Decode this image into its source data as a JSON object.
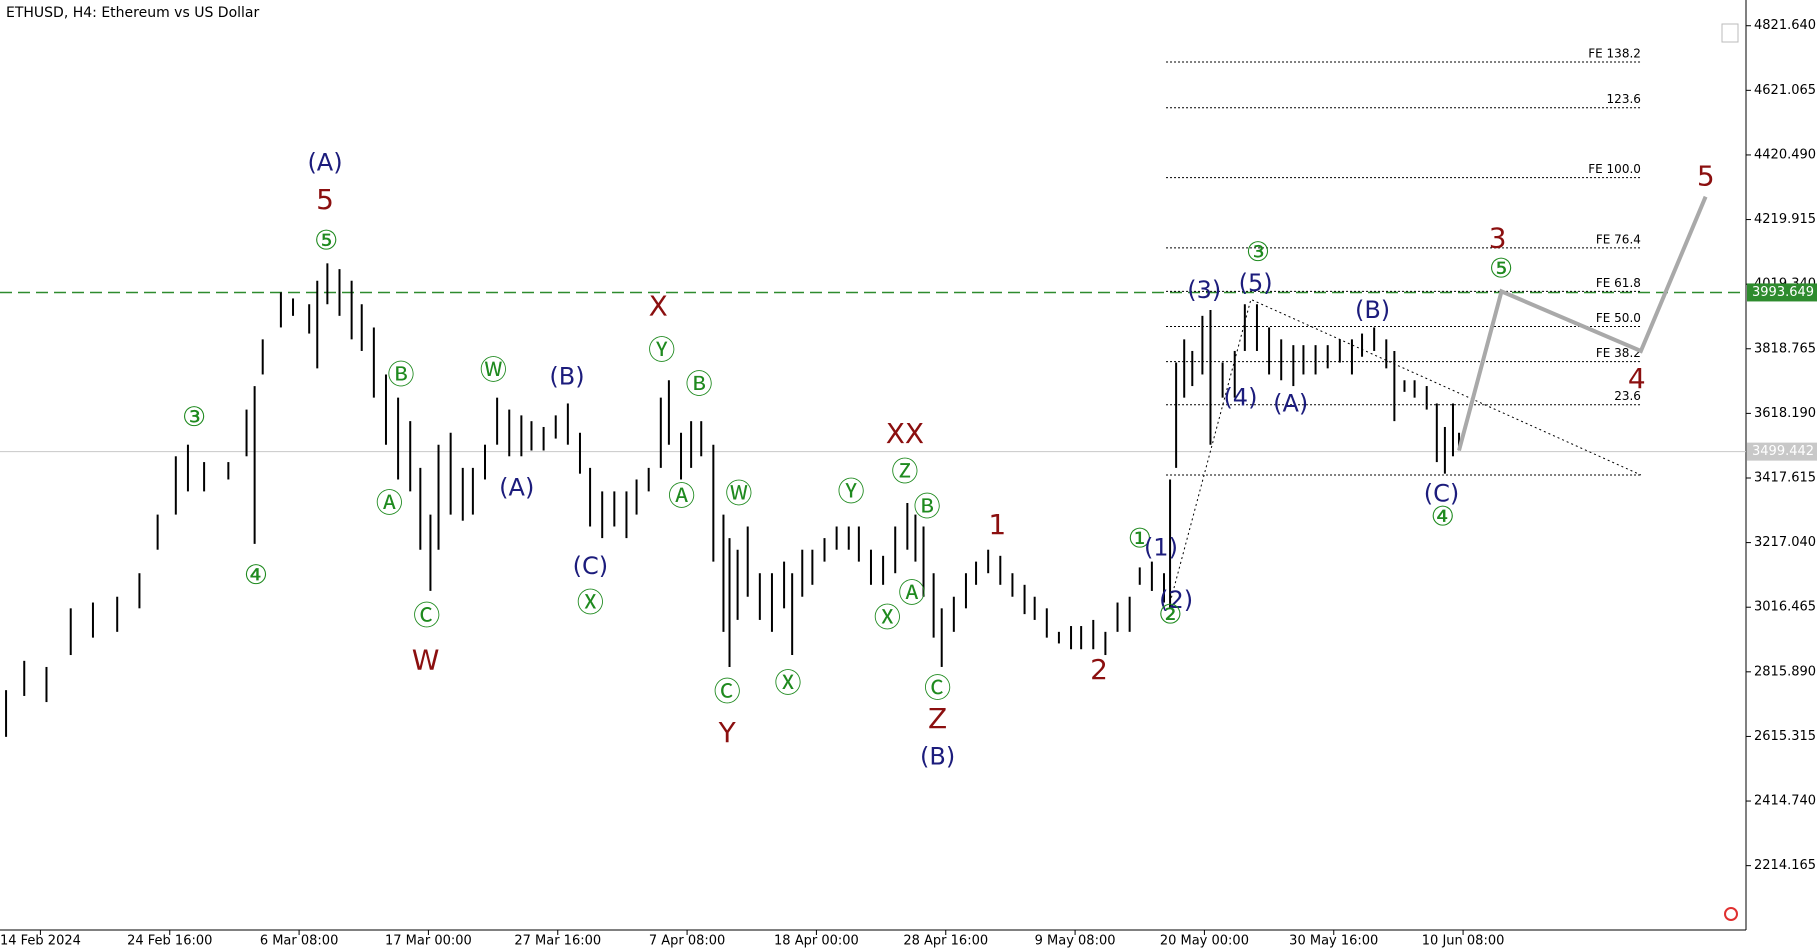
{
  "chart_data": {
    "type": "ohlc-bars",
    "title": "ETHUSD, H4:  Ethereum vs US Dollar",
    "color": "#000000",
    "xlim": [
      0,
      864
    ],
    "ylim": [
      2014.4,
      4901.5
    ],
    "xticks": [
      {
        "value": 20,
        "label": "14 Feb 2024"
      },
      {
        "value": 84,
        "label": "24 Feb 16:00"
      },
      {
        "value": 148,
        "label": "6 Mar 08:00"
      },
      {
        "value": 212,
        "label": "17 Mar 00:00"
      },
      {
        "value": 276,
        "label": "27 Mar 16:00"
      },
      {
        "value": 340,
        "label": "7 Apr 08:00"
      },
      {
        "value": 404,
        "label": "18 Apr 00:00"
      },
      {
        "value": 468,
        "label": "28 Apr 16:00"
      },
      {
        "value": 532,
        "label": "9 May 08:00"
      },
      {
        "value": 596,
        "label": "20 May 00:00"
      },
      {
        "value": 660,
        "label": "30 May 16:00"
      },
      {
        "value": 724,
        "label": "10 Jun 08:00"
      }
    ],
    "yticks": [
      {
        "value": 4821.64,
        "label": "4821.640"
      },
      4621.065,
      {
        "value": 4420.49,
        "label": "4420.490"
      },
      4219.915,
      {
        "value": 4019.34,
        "label": "4019.340"
      },
      3818.765,
      {
        "value": 3618.19,
        "label": "3618.190"
      },
      3417.615,
      {
        "value": 3217.04,
        "label": "3217.040"
      },
      3016.465,
      {
        "value": 2815.89,
        "label": "2815.890"
      },
      2615.315,
      {
        "value": 2414.74,
        "label": "2414.740"
      },
      2214.165
    ],
    "x": [
      3,
      12,
      23,
      35,
      46,
      58,
      69,
      78,
      87,
      93,
      101,
      113,
      122,
      126,
      130,
      139,
      145,
      153,
      157,
      162,
      168,
      174,
      179,
      185,
      191,
      197,
      203,
      208,
      213,
      217,
      223,
      229,
      234,
      240,
      246,
      252,
      258,
      263,
      269,
      275,
      281,
      287,
      292,
      298,
      304,
      310,
      315,
      321,
      327,
      331,
      337,
      342,
      347,
      353,
      358,
      361,
      365,
      370,
      376,
      382,
      388,
      392,
      397,
      402,
      408,
      414,
      420,
      425,
      431,
      437,
      443,
      449,
      453,
      457,
      462,
      466,
      472,
      478,
      483,
      489,
      495,
      501,
      507,
      512,
      518,
      524,
      530,
      535,
      541,
      547,
      553,
      559,
      564,
      570,
      576,
      579,
      582,
      586,
      590,
      595,
      599,
      605,
      611,
      616,
      622,
      628,
      634,
      640,
      645,
      651,
      657,
      663,
      669,
      674,
      680,
      686,
      690,
      695,
      700,
      706,
      711,
      715,
      719,
      722
    ],
    "high": [
      2759,
      2850,
      2831,
      3013,
      3031,
      3049,
      3122,
      3304,
      3485,
      3521,
      3467,
      3467,
      3630,
      3703,
      3848,
      3994,
      3975,
      3957,
      4030,
      4084,
      4066,
      4030,
      3957,
      3885,
      3739,
      3667,
      3594,
      3449,
      3304,
      3521,
      3558,
      3449,
      3449,
      3521,
      3667,
      3630,
      3612,
      3594,
      3576,
      3612,
      3649,
      3558,
      3449,
      3376,
      3376,
      3376,
      3413,
      3449,
      3667,
      3721,
      3558,
      3594,
      3594,
      3521,
      3304,
      3231,
      3195,
      3267,
      3122,
      3122,
      3158,
      3122,
      3195,
      3195,
      3231,
      3267,
      3267,
      3267,
      3195,
      3176,
      3267,
      3340,
      3304,
      3267,
      3122,
      3013,
      3049,
      3122,
      3158,
      3195,
      3176,
      3122,
      3086,
      3049,
      3013,
      2940,
      2958,
      2958,
      2977,
      2940,
      3031,
      3049,
      3140,
      3158,
      3122,
      3413,
      3776,
      3848,
      3812,
      3921,
      3939,
      3776,
      3812,
      3957,
      3957,
      3885,
      3848,
      3830,
      3830,
      3830,
      3830,
      3848,
      3848,
      3866,
      3885,
      3848,
      3812,
      3721,
      3721,
      3703,
      3649,
      3576,
      3649,
      3558
    ],
    "low": [
      2614,
      2741,
      2722,
      2868,
      2922,
      2940,
      3013,
      3195,
      3304,
      3376,
      3376,
      3413,
      3485,
      3213,
      3739,
      3885,
      3921,
      3866,
      3758,
      3957,
      3921,
      3848,
      3812,
      3667,
      3521,
      3413,
      3376,
      3195,
      3067,
      3195,
      3304,
      3285,
      3304,
      3413,
      3521,
      3485,
      3485,
      3503,
      3503,
      3540,
      3521,
      3431,
      3267,
      3231,
      3267,
      3231,
      3304,
      3376,
      3449,
      3521,
      3413,
      3449,
      3485,
      3158,
      2940,
      2831,
      2977,
      3049,
      2977,
      2940,
      3013,
      2868,
      3049,
      3086,
      3158,
      3195,
      3195,
      3158,
      3086,
      3086,
      3122,
      3195,
      3158,
      3049,
      2922,
      2831,
      2940,
      3013,
      3086,
      3122,
      3086,
      3049,
      2995,
      2977,
      2922,
      2904,
      2886,
      2886,
      2886,
      2868,
      2940,
      2940,
      3086,
      3067,
      3031,
      3013,
      3449,
      3667,
      3703,
      3739,
      3521,
      3667,
      3667,
      3812,
      3812,
      3739,
      3721,
      3703,
      3739,
      3739,
      3758,
      3776,
      3739,
      3794,
      3812,
      3758,
      3594,
      3685,
      3667,
      3630,
      3467,
      3431,
      3485,
      3503
    ],
    "levels": [
      {
        "value": 3993.649,
        "color": "#2e8b2e",
        "dashed": true
      },
      {
        "value": 3499.442,
        "color": "#c8c8c8",
        "dashed": false
      }
    ],
    "fib_xlim": [
      577,
      812
    ],
    "fib_levels": [
      {
        "label": "FE 138.2",
        "value": 4709
      },
      {
        "label": "123.6",
        "value": 4567
      },
      {
        "label": "FE 100.0",
        "value": 4350
      },
      {
        "label": "FE 76.4",
        "value": 4132
      },
      {
        "label": "FE 61.8",
        "value": 3997
      },
      {
        "label": "FE 50.0",
        "value": 3888
      },
      {
        "label": "FE 38.2",
        "value": 3779
      },
      {
        "label": "23.6",
        "value": 3645
      },
      {
        "value": 3427
      }
    ],
    "triangle": {
      "x": [
        579,
        619,
        812
      ],
      "values": [
        3031,
        3972,
        3427
      ]
    },
    "projection": {
      "x": [
        722,
        743,
        812,
        844
      ],
      "values": [
        3503,
        3997,
        3812,
        4291
      ],
      "color": "#a9a9a9"
    },
    "annotations": [
      {
        "text": "(A)",
        "color": "#1c1c7c"
      },
      {
        "text": "5",
        "color": "#8b0f0f"
      },
      {
        "text": "⑤",
        "color": "#1f8a1f"
      },
      {
        "text": "③",
        "color": "#1f8a1f"
      },
      {
        "text": "④",
        "color": "#1f8a1f"
      },
      {
        "text": "Ⓑ",
        "color": "#1f8a1f"
      },
      {
        "text": "Ⓐ",
        "color": "#1f8a1f"
      },
      {
        "text": "Ⓒ",
        "color": "#1f8a1f"
      },
      {
        "text": "W",
        "color": "#8b0f0f"
      },
      {
        "text": "Ⓦ",
        "color": "#1f8a1f"
      },
      {
        "text": "(A)",
        "color": "#1c1c7c"
      },
      {
        "text": "(B)",
        "color": "#1c1c7c"
      },
      {
        "text": "(C)",
        "color": "#1c1c7c"
      },
      {
        "text": "Ⓧ",
        "color": "#1f8a1f"
      },
      {
        "text": "X",
        "color": "#8b0f0f"
      },
      {
        "text": "Ⓨ",
        "color": "#1f8a1f"
      },
      {
        "text": "Ⓑ",
        "color": "#1f8a1f"
      },
      {
        "text": "Ⓐ",
        "color": "#1f8a1f"
      },
      {
        "text": "Ⓦ",
        "color": "#1f8a1f"
      },
      {
        "text": "Ⓒ",
        "color": "#1f8a1f"
      },
      {
        "text": "Y",
        "color": "#8b0f0f"
      },
      {
        "text": "Ⓧ",
        "color": "#1f8a1f"
      },
      {
        "text": "Ⓨ",
        "color": "#1f8a1f"
      },
      {
        "text": "XX",
        "color": "#8b0f0f"
      },
      {
        "text": "Ⓩ",
        "color": "#1f8a1f"
      },
      {
        "text": "Ⓑ",
        "color": "#1f8a1f"
      },
      {
        "text": "Ⓐ",
        "color": "#1f8a1f"
      },
      {
        "text": "Ⓧ",
        "color": "#1f8a1f"
      },
      {
        "text": "Ⓒ",
        "color": "#1f8a1f"
      },
      {
        "text": "Z",
        "color": "#8b0f0f"
      },
      {
        "text": "(B)",
        "color": "#1c1c7c"
      },
      {
        "text": "1",
        "color": "#8b0f0f"
      },
      {
        "text": "2",
        "color": "#8b0f0f"
      },
      {
        "text": "①",
        "color": "#1f8a1f"
      },
      {
        "text": "(1)",
        "color": "#1c1c7c"
      },
      {
        "text": "(2)",
        "color": "#1c1c7c"
      },
      {
        "text": "②",
        "color": "#1f8a1f"
      },
      {
        "text": "(3)",
        "color": "#1c1c7c"
      },
      {
        "text": "(5)",
        "color": "#1c1c7c"
      },
      {
        "text": "③",
        "color": "#1f8a1f"
      },
      {
        "text": "(4)",
        "color": "#1c1c7c"
      },
      {
        "text": "(A)",
        "color": "#1c1c7c"
      },
      {
        "text": "(B)",
        "color": "#1c1c7c"
      },
      {
        "text": "(C)",
        "color": "#1c1c7c"
      },
      {
        "text": "④",
        "color": "#1f8a1f"
      },
      {
        "text": "3",
        "color": "#8b0f0f"
      },
      {
        "text": "⑤",
        "color": "#1f8a1f"
      },
      {
        "text": "4",
        "color": "#8b0f0f"
      },
      {
        "text": "5",
        "color": "#8b0f0f"
      }
    ]
  }
}
